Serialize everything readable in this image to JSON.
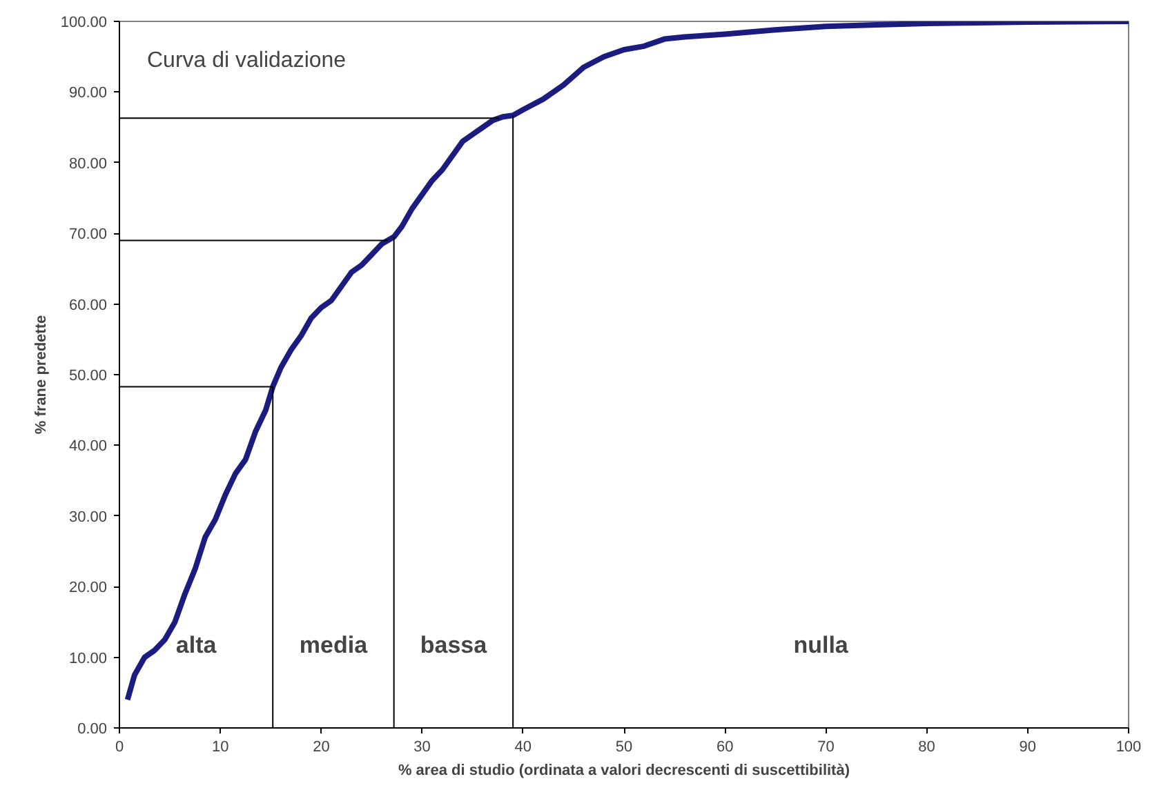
{
  "chart_data": {
    "type": "line",
    "xlabel": "% area di studio (ordinata a valori decrescenti di suscettibilità)",
    "ylabel": "% frane predette",
    "x": [
      0.8,
      1.5,
      2.5,
      3.5,
      4.5,
      5.5,
      6.5,
      7.5,
      8.5,
      9.5,
      10.5,
      11.5,
      12.5,
      13.5,
      14.5,
      15.2,
      16,
      17,
      18,
      19,
      20,
      21,
      22,
      23,
      24,
      25,
      26,
      27.2,
      28,
      29,
      30,
      31,
      32,
      33,
      34,
      35,
      36,
      37,
      38,
      39,
      40,
      42,
      44,
      46,
      48,
      50,
      52,
      54,
      56,
      58,
      60,
      65,
      70,
      75,
      80,
      90,
      100
    ],
    "series": [
      {
        "color": "#1c1c80",
        "values": [
          4,
          7.5,
          10,
          11,
          12.5,
          15,
          19,
          22.5,
          27,
          29.5,
          33,
          36,
          38,
          42,
          45,
          48.3,
          51,
          53.5,
          55.5,
          58,
          59.5,
          60.5,
          62.5,
          64.5,
          65.5,
          67,
          68.5,
          69.5,
          71,
          73.5,
          75.5,
          77.5,
          79,
          81,
          83,
          84,
          85,
          86,
          86.5,
          86.7,
          87.5,
          89,
          91,
          93.5,
          95,
          96,
          96.5,
          97.5,
          97.8,
          98,
          98.2,
          98.8,
          99.3,
          99.5,
          99.7,
          99.9,
          100
        ]
      }
    ],
    "xlim": [
      0,
      100
    ],
    "xticks": [
      0,
      10,
      20,
      30,
      40,
      50,
      60,
      70,
      80,
      90,
      100
    ],
    "ylim": [
      0,
      100
    ],
    "yticks": [
      {
        "value": 0,
        "label": "0.00"
      },
      {
        "value": 10,
        "label": "10.00"
      },
      {
        "value": 20,
        "label": "20.00"
      },
      {
        "value": 30,
        "label": "30.00"
      },
      {
        "value": 40,
        "label": "40.00"
      },
      {
        "value": 50,
        "label": "50.00"
      },
      {
        "value": 60,
        "label": "60.00"
      },
      {
        "value": 70,
        "label": "70.00"
      },
      {
        "value": 80,
        "label": "80.00"
      },
      {
        "value": 90,
        "label": "90.00"
      },
      {
        "value": 100,
        "label": "100.00"
      }
    ],
    "ref_lines": [
      {
        "axis": "y",
        "value": 48.3,
        "color": "#000000"
      },
      {
        "axis": "y",
        "value": 69,
        "color": "#000000"
      },
      {
        "axis": "y",
        "value": 86.3,
        "color": "#000000"
      },
      {
        "axis": "x",
        "value": 15.2,
        "color": "#000000"
      },
      {
        "axis": "x",
        "value": 27.2,
        "color": "#000000"
      },
      {
        "axis": "x",
        "value": 39,
        "color": "#000000"
      }
    ],
    "annotations": [
      "Curva di validazione",
      "alta",
      "media",
      "bassa",
      "nulla"
    ],
    "grid": false,
    "marker": "none",
    "line_style": "solid"
  }
}
